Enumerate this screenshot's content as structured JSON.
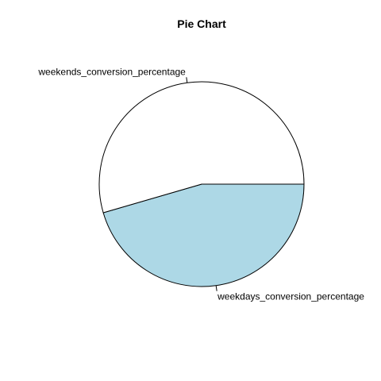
{
  "chart_data": {
    "type": "pie",
    "title": "Pie Chart",
    "slices": [
      {
        "label": "weekdays_conversion_percentage",
        "value": 45.5,
        "color": "#add8e6"
      },
      {
        "label": "weekends_conversion_percentage",
        "value": 54.5,
        "color": "#ffffff"
      }
    ],
    "start_angle_deg": 0,
    "direction": "counterclockwise-from-east-shown-clockwise",
    "border_color": "#000000"
  }
}
